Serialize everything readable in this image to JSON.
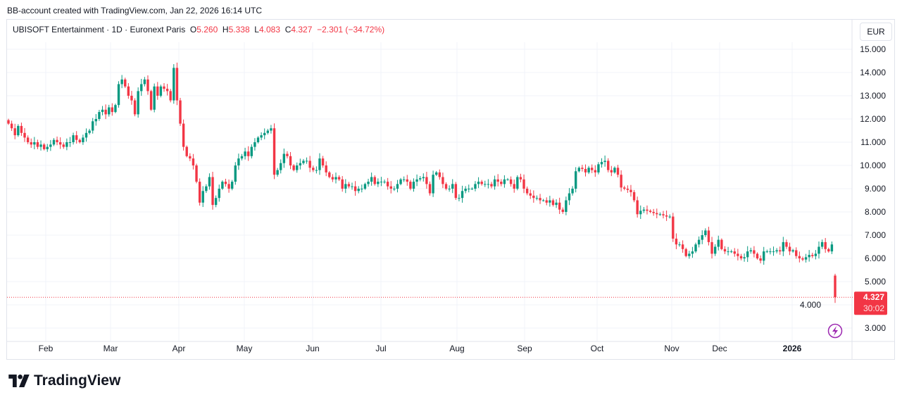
{
  "credit": "BB-account created with TradingView.com, Jan 22, 2026 16:14 UTC",
  "legend": {
    "symbol": "UBISOFT Entertainment · 1D · Euronext Paris",
    "o_label": "O",
    "o": "5.260",
    "h_label": "H",
    "h": "5.338",
    "l_label": "L",
    "l": "4.083",
    "c_label": "C",
    "c": "4.327",
    "change": "−2.301 (−34.72%)"
  },
  "currency_button": "EUR",
  "price_tag": {
    "price": "4.327",
    "countdown": "30:02"
  },
  "logo_text": "TradingView",
  "colors": {
    "up": "#089981",
    "down": "#f23645",
    "grid": "#f0f3fa",
    "accent": "#9c27b0"
  },
  "chart_data": {
    "type": "candlestick",
    "title": "UBISOFT Entertainment · 1D · Euronext Paris",
    "ylim": [
      3,
      15
    ],
    "y_ticks": [
      "3.000",
      "4.000",
      "5.000",
      "6.000",
      "7.000",
      "8.000",
      "9.000",
      "10.000",
      "11.000",
      "12.000",
      "13.000",
      "14.000",
      "15.000"
    ],
    "x_ticks": [
      "Feb",
      "Mar",
      "Apr",
      "May",
      "Jun",
      "Jul",
      "Aug",
      "Sep",
      "Oct",
      "Nov",
      "Dec",
      "2026"
    ],
    "closes": [
      11.8,
      11.6,
      11.3,
      11.7,
      11.4,
      11.2,
      11.0,
      10.9,
      11.0,
      10.8,
      10.9,
      10.7,
      10.8,
      10.9,
      11.1,
      11.0,
      10.9,
      10.8,
      11.0,
      11.0,
      11.3,
      11.1,
      11.0,
      11.2,
      11.4,
      11.5,
      11.9,
      12.0,
      12.3,
      12.4,
      12.2,
      12.5,
      12.3,
      12.6,
      13.5,
      13.7,
      13.4,
      13.0,
      12.8,
      12.2,
      13.2,
      13.5,
      13.7,
      13.2,
      12.4,
      13.4,
      13.0,
      13.4,
      13.3,
      13.2,
      12.8,
      14.2,
      12.8,
      11.8,
      10.8,
      10.4,
      10.3,
      10.0,
      9.3,
      8.4,
      8.9,
      9.1,
      9.5,
      8.3,
      8.6,
      9.0,
      9.3,
      9.2,
      9.0,
      9.3,
      10.0,
      10.3,
      10.4,
      10.6,
      10.4,
      10.8,
      11.0,
      11.2,
      11.3,
      11.4,
      11.5,
      11.6,
      9.6,
      9.8,
      10.1,
      10.5,
      10.4,
      10.0,
      9.8,
      10.0,
      10.1,
      10.2,
      10.2,
      9.9,
      9.8,
      9.8,
      10.3,
      10.0,
      9.7,
      9.5,
      9.4,
      9.5,
      9.4,
      9.0,
      9.2,
      9.1,
      9.1,
      8.9,
      9.0,
      9.0,
      9.2,
      9.3,
      9.5,
      9.2,
      9.3,
      9.3,
      9.3,
      9.1,
      9.0,
      9.0,
      9.2,
      9.4,
      9.4,
      9.3,
      9.0,
      9.3,
      9.4,
      9.45,
      9.5,
      9.2,
      8.8,
      9.6,
      9.7,
      9.5,
      9.2,
      9.0,
      9.0,
      9.2,
      8.6,
      8.6,
      8.9,
      9.0,
      9.0,
      9.0,
      9.2,
      9.3,
      9.2,
      9.2,
      9.2,
      9.1,
      9.4,
      9.3,
      9.2,
      9.4,
      9.4,
      9.2,
      9.0,
      9.5,
      9.4,
      9.0,
      8.8,
      8.7,
      8.6,
      8.6,
      8.5,
      8.5,
      8.4,
      8.5,
      8.3,
      8.4,
      8.1,
      8.0,
      8.5,
      8.8,
      9.0,
      9.75,
      9.9,
      9.85,
      9.7,
      9.9,
      9.8,
      9.7,
      10.05,
      10.15,
      10.2,
      9.8,
      9.7,
      9.9,
      9.6,
      9.05,
      9.0,
      8.95,
      8.85,
      8.5,
      7.9,
      8.05,
      8.1,
      8.05,
      8.0,
      7.95,
      7.9,
      7.9,
      7.85,
      7.8,
      7.8,
      6.85,
      6.6,
      6.6,
      6.4,
      6.1,
      6.2,
      6.3,
      6.6,
      6.8,
      7.0,
      7.2,
      6.7,
      6.2,
      6.5,
      6.8,
      6.4,
      6.3,
      6.3,
      6.3,
      6.2,
      6.1,
      6.0,
      6.05,
      6.3,
      6.35,
      6.2,
      6.0,
      5.9,
      6.3,
      6.3,
      6.3,
      6.3,
      6.35,
      6.3,
      6.7,
      6.5,
      6.3,
      6.35,
      6.1,
      6.0,
      5.95,
      6.05,
      6.15,
      6.1,
      6.2,
      6.5,
      6.7,
      6.4,
      6.3,
      6.6
    ],
    "last_candle": {
      "open": 5.26,
      "high": 5.338,
      "low": 4.083,
      "close": 4.327
    },
    "current_price": 4.327
  }
}
